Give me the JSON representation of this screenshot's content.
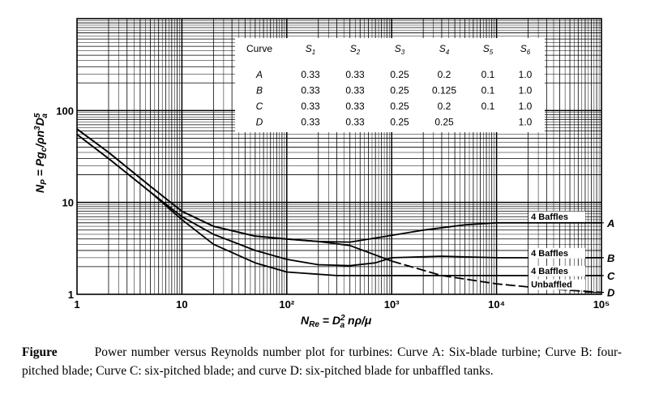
{
  "chart_data": {
    "type": "line",
    "x_scale": "log",
    "y_scale": "log",
    "xlim": [
      1,
      100000
    ],
    "ylim": [
      1,
      1000
    ],
    "x_ticks": [
      "1",
      "10",
      "10²",
      "10³",
      "10⁴",
      "10⁵"
    ],
    "y_ticks": [
      "1",
      "10",
      "100"
    ],
    "xlabel": "N_Re = D_a^2 nρ/μ",
    "ylabel": "N_P = P g_c / ρ n^3 D_a^5",
    "grid": true,
    "series": [
      {
        "name": "A",
        "annotation": "4 Baffles",
        "points": [
          [
            1,
            63
          ],
          [
            2,
            35
          ],
          [
            5,
            15
          ],
          [
            10,
            8
          ],
          [
            20,
            5.5
          ],
          [
            50,
            4.3
          ],
          [
            100,
            4.0
          ],
          [
            200,
            3.75
          ],
          [
            400,
            3.7
          ],
          [
            800,
            4.2
          ],
          [
            2000,
            5.0
          ],
          [
            5000,
            5.7
          ],
          [
            10000,
            6.0
          ],
          [
            100000,
            6.0
          ]
        ]
      },
      {
        "name": "B",
        "annotation": "4 Baffles",
        "points": [
          [
            1,
            55
          ],
          [
            2,
            30
          ],
          [
            5,
            13
          ],
          [
            10,
            7.0
          ],
          [
            20,
            4.5
          ],
          [
            50,
            3.0
          ],
          [
            100,
            2.4
          ],
          [
            200,
            2.1
          ],
          [
            400,
            2.05
          ],
          [
            700,
            2.2
          ],
          [
            1000,
            2.5
          ],
          [
            3000,
            2.6
          ],
          [
            10000,
            2.5
          ],
          [
            100000,
            2.5
          ]
        ]
      },
      {
        "name": "C",
        "annotation": "4 Baffles",
        "points": [
          [
            1,
            55
          ],
          [
            2,
            30
          ],
          [
            5,
            13
          ],
          [
            10,
            6.5
          ],
          [
            20,
            3.5
          ],
          [
            50,
            2.2
          ],
          [
            100,
            1.75
          ],
          [
            300,
            1.6
          ],
          [
            1000,
            1.6
          ],
          [
            10000,
            1.6
          ],
          [
            100000,
            1.6
          ]
        ]
      },
      {
        "name": "D",
        "annotation": "Unbaffled",
        "points": [
          [
            1,
            63
          ],
          [
            2,
            35
          ],
          [
            5,
            15
          ],
          [
            10,
            8
          ],
          [
            20,
            5.5
          ],
          [
            50,
            4.3
          ],
          [
            100,
            4.0
          ],
          [
            200,
            3.75
          ],
          [
            400,
            3.4
          ],
          [
            1000,
            2.3
          ],
          [
            3000,
            1.6
          ],
          [
            10000,
            1.3
          ],
          [
            30000,
            1.15
          ],
          [
            100000,
            1.05
          ]
        ]
      }
    ],
    "table": {
      "headers": [
        "Curve",
        "S1",
        "S2",
        "S3",
        "S4",
        "S5",
        "S6"
      ],
      "rows": [
        [
          "A",
          "0.33",
          "0.33",
          "0.25",
          "0.2",
          "0.1",
          "1.0"
        ],
        [
          "B",
          "0.33",
          "0.33",
          "0.25",
          "0.125",
          "0.1",
          "1.0"
        ],
        [
          "C",
          "0.33",
          "0.33",
          "0.25",
          "0.2",
          "0.1",
          "1.0"
        ],
        [
          "D",
          "0.33",
          "0.33",
          "0.25",
          "0.25",
          "",
          "1.0"
        ]
      ]
    }
  },
  "caption": {
    "label": "Figure",
    "text": "Power number versus Reynolds number plot for turbines: Curve A: Six-blade turbine; Curve B: four-pitched blade; Curve C: six-pitched blade; and curve D: six-pitched blade for unbaffled tanks."
  }
}
